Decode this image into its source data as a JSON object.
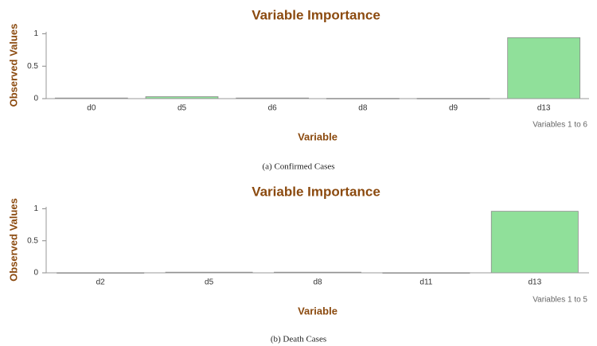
{
  "chart_data": [
    {
      "type": "bar",
      "title": "Variable Importance",
      "x_label": "Variable",
      "y_label": "Observed Values",
      "range_note": "Variables 1 to 6",
      "caption": "(a) Confirmed Cases",
      "categories": [
        "d0",
        "d5",
        "d6",
        "d8",
        "d9",
        "d13"
      ],
      "values": [
        0.01,
        0.03,
        0.01,
        0.005,
        0.005,
        0.94
      ],
      "color": "#90e09a",
      "ylim": [
        0,
        1.03
      ],
      "yticks": [
        0,
        0.5,
        1
      ]
    },
    {
      "type": "bar",
      "title": "Variable Importance",
      "x_label": "Variable",
      "y_label": "Observed Values",
      "range_note": "Variables 1 to 5",
      "caption": "(b) Death Cases",
      "categories": [
        "d2",
        "d5",
        "d8",
        "d11",
        "d13"
      ],
      "values": [
        0.003,
        0.01,
        0.01,
        0.003,
        0.96
      ],
      "color": "#90e09a",
      "ylim": [
        0,
        1.03
      ],
      "yticks": [
        0,
        0.5,
        1
      ]
    }
  ]
}
